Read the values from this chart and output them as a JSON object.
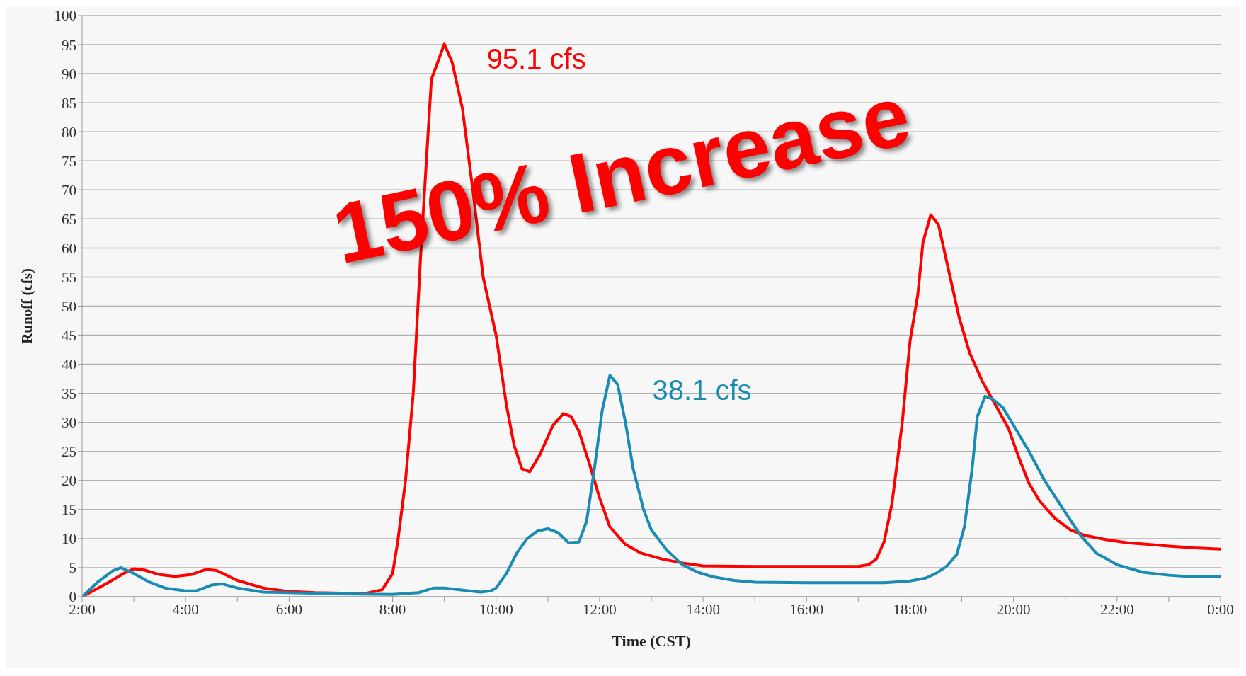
{
  "chart_data": {
    "type": "line",
    "xlabel": "Time (CST)",
    "ylabel": "Runoff (cfs)",
    "xlim": [
      2,
      24
    ],
    "xticks": [
      {
        "value": 2,
        "label": "2:00"
      },
      {
        "value": 3,
        "label": null
      },
      {
        "value": 4,
        "label": "4:00"
      },
      {
        "value": 5,
        "label": null
      },
      {
        "value": 6,
        "label": "6:00"
      },
      {
        "value": 7,
        "label": null
      },
      {
        "value": 8,
        "label": "8:00"
      },
      {
        "value": 9,
        "label": null
      },
      {
        "value": 10,
        "label": "10:00"
      },
      {
        "value": 11,
        "label": null
      },
      {
        "value": 12,
        "label": "12:00"
      },
      {
        "value": 13,
        "label": null
      },
      {
        "value": 14,
        "label": "14:00"
      },
      {
        "value": 15,
        "label": null
      },
      {
        "value": 16,
        "label": "16:00"
      },
      {
        "value": 17,
        "label": null
      },
      {
        "value": 18,
        "label": "18:00"
      },
      {
        "value": 19,
        "label": null
      },
      {
        "value": 20,
        "label": "20:00"
      },
      {
        "value": 21,
        "label": null
      },
      {
        "value": 22,
        "label": "22:00"
      },
      {
        "value": 23,
        "label": null
      },
      {
        "value": 24,
        "label": "0:00"
      }
    ],
    "ylim": [
      0,
      100
    ],
    "yticks": [
      0,
      5,
      10,
      15,
      20,
      25,
      30,
      35,
      40,
      45,
      50,
      55,
      60,
      65,
      70,
      75,
      80,
      85,
      90,
      95,
      100
    ],
    "grid": "y",
    "legend": false,
    "marker": "none",
    "line_style": "solid",
    "series": [
      {
        "color": "#ff0000",
        "x": [
          2,
          2.5,
          2.8,
          3.0,
          3.2,
          3.5,
          3.8,
          4.1,
          4.4,
          4.6,
          5.0,
          5.5,
          6.0,
          6.5,
          7.0,
          7.5,
          7.8,
          8.0,
          8.1,
          8.25,
          8.4,
          8.55,
          8.75,
          9.0,
          9.15,
          9.35,
          9.55,
          9.75,
          10.0,
          10.2,
          10.35,
          10.5,
          10.65,
          10.85,
          11.1,
          11.3,
          11.45,
          11.6,
          11.8,
          12.0,
          12.2,
          12.5,
          12.8,
          13.2,
          13.6,
          14,
          15,
          16,
          17,
          17.2,
          17.35,
          17.5,
          17.65,
          17.85,
          18.0,
          18.15,
          18.25,
          18.4,
          18.55,
          18.75,
          18.95,
          19.15,
          19.4,
          19.65,
          19.9,
          20.1,
          20.3,
          20.5,
          20.8,
          21.1,
          21.4,
          21.8,
          22.2,
          22.6,
          23.0,
          23.5,
          24
        ],
        "values": [
          0,
          2.4,
          4,
          4.8,
          4.6,
          3.8,
          3.5,
          3.8,
          4.7,
          4.5,
          2.8,
          1.5,
          0.9,
          0.7,
          0.6,
          0.6,
          1.2,
          4,
          9.5,
          20,
          35,
          60,
          89,
          95.1,
          92,
          84,
          70,
          55,
          45,
          33,
          26,
          22,
          21.5,
          24.5,
          29.5,
          31.5,
          31,
          28.5,
          23,
          17,
          12,
          9,
          7.5,
          6.5,
          5.8,
          5.3,
          5.2,
          5.2,
          5.2,
          5.5,
          6.5,
          9.5,
          16,
          30,
          44,
          52,
          61,
          65.7,
          64,
          56,
          48,
          42,
          37,
          33,
          29,
          24,
          19.5,
          16.5,
          13.5,
          11.5,
          10.5,
          9.8,
          9.3,
          9,
          8.7,
          8.4,
          8.2
        ]
      },
      {
        "color": "#1a8cb4",
        "x": [
          2,
          2.3,
          2.6,
          2.75,
          3.0,
          3.3,
          3.6,
          4.0,
          4.2,
          4.5,
          4.7,
          5.0,
          5.5,
          6.0,
          7.0,
          8.0,
          8.5,
          8.8,
          9.0,
          9.3,
          9.7,
          9.9,
          10.0,
          10.2,
          10.4,
          10.6,
          10.8,
          11.0,
          11.2,
          11.4,
          11.6,
          11.75,
          11.9,
          12.05,
          12.2,
          12.35,
          12.5,
          12.65,
          12.85,
          13.0,
          13.3,
          13.6,
          13.9,
          14.2,
          14.6,
          15.0,
          16.0,
          17.0,
          17.5,
          18.0,
          18.3,
          18.5,
          18.7,
          18.9,
          19.05,
          19.2,
          19.3,
          19.45,
          19.6,
          19.8,
          20.0,
          20.3,
          20.6,
          21.0,
          21.3,
          21.6,
          22.0,
          22.5,
          23.0,
          23.5,
          24
        ],
        "values": [
          0,
          2.5,
          4.5,
          5,
          4,
          2.5,
          1.5,
          1.0,
          1.0,
          2,
          2.2,
          1.5,
          0.8,
          0.7,
          0.5,
          0.4,
          0.7,
          1.5,
          1.5,
          1.2,
          0.8,
          1.0,
          1.5,
          4,
          7.5,
          10,
          11.3,
          11.7,
          11,
          9.3,
          9.4,
          13,
          22,
          32,
          38.1,
          36.5,
          30,
          22,
          15,
          11.5,
          8,
          5.5,
          4.2,
          3.4,
          2.8,
          2.5,
          2.4,
          2.4,
          2.4,
          2.7,
          3.2,
          4,
          5.2,
          7.2,
          12,
          22,
          31,
          34.5,
          34,
          32.5,
          29.5,
          25,
          20,
          14.5,
          10.5,
          7.5,
          5.5,
          4.2,
          3.7,
          3.4,
          3.4
        ]
      }
    ],
    "annotations": [
      {
        "text": "95.1 cfs",
        "x": 9,
        "y": 95.1
      },
      {
        "text": "38.1 cfs",
        "x": 12.2,
        "y": 38.1
      },
      "150% Increase"
    ]
  }
}
